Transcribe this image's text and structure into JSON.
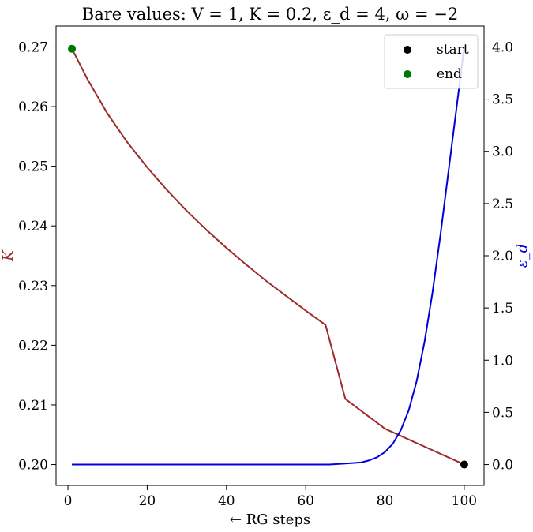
{
  "chart_data": {
    "type": "line",
    "title": "Bare values: V = 1, K = 0.2, ε_d = 4, ω = −2",
    "xlabel": "← RG steps",
    "ylabel_left": "K",
    "ylabel_right": "ε_d",
    "xlim": [
      -3,
      105
    ],
    "ylim_left": [
      0.1965,
      0.2735
    ],
    "ylim_right": [
      -0.2,
      4.2
    ],
    "x_ticks": [
      0,
      20,
      40,
      60,
      80,
      100
    ],
    "y_ticks_left": [
      0.2,
      0.21,
      0.22,
      0.23,
      0.24,
      0.25,
      0.26,
      0.27
    ],
    "y_ticks_right": [
      0.0,
      0.5,
      1.0,
      1.5,
      2.0,
      2.5,
      3.0,
      3.5,
      4.0
    ],
    "grid": false,
    "legend_placement": "top-right",
    "series": [
      {
        "axis": "left",
        "color": "#9e2a2b",
        "x": [
          1,
          5,
          10,
          15,
          20,
          25,
          30,
          35,
          40,
          45,
          50,
          55,
          60,
          65,
          70,
          75,
          80,
          85,
          90,
          95,
          100
        ],
        "values": [
          0.2697,
          0.2645,
          0.2588,
          0.254,
          0.2498,
          0.246,
          0.2425,
          0.2393,
          0.2363,
          0.2335,
          0.2308,
          0.2283,
          0.2258,
          0.2234,
          0.211,
          0.2085,
          0.206,
          0.2045,
          0.203,
          0.2015,
          0.2
        ]
      },
      {
        "axis": "right",
        "color": "#0000dd",
        "x": [
          1,
          10,
          20,
          30,
          40,
          50,
          60,
          66,
          70,
          74,
          76,
          78,
          80,
          82,
          84,
          86,
          88,
          90,
          92,
          94,
          96,
          98,
          100
        ],
        "values": [
          0,
          0,
          0,
          0,
          0,
          0,
          0,
          0,
          0.01,
          0.02,
          0.04,
          0.07,
          0.12,
          0.2,
          0.33,
          0.52,
          0.8,
          1.18,
          1.65,
          2.2,
          2.8,
          3.4,
          4.0
        ]
      }
    ],
    "markers": [
      {
        "label": "start",
        "color": "#000000",
        "x": 100,
        "k": 0.2
      },
      {
        "label": "end",
        "color": "#007700",
        "x": 1,
        "k": 0.2697
      }
    ]
  }
}
